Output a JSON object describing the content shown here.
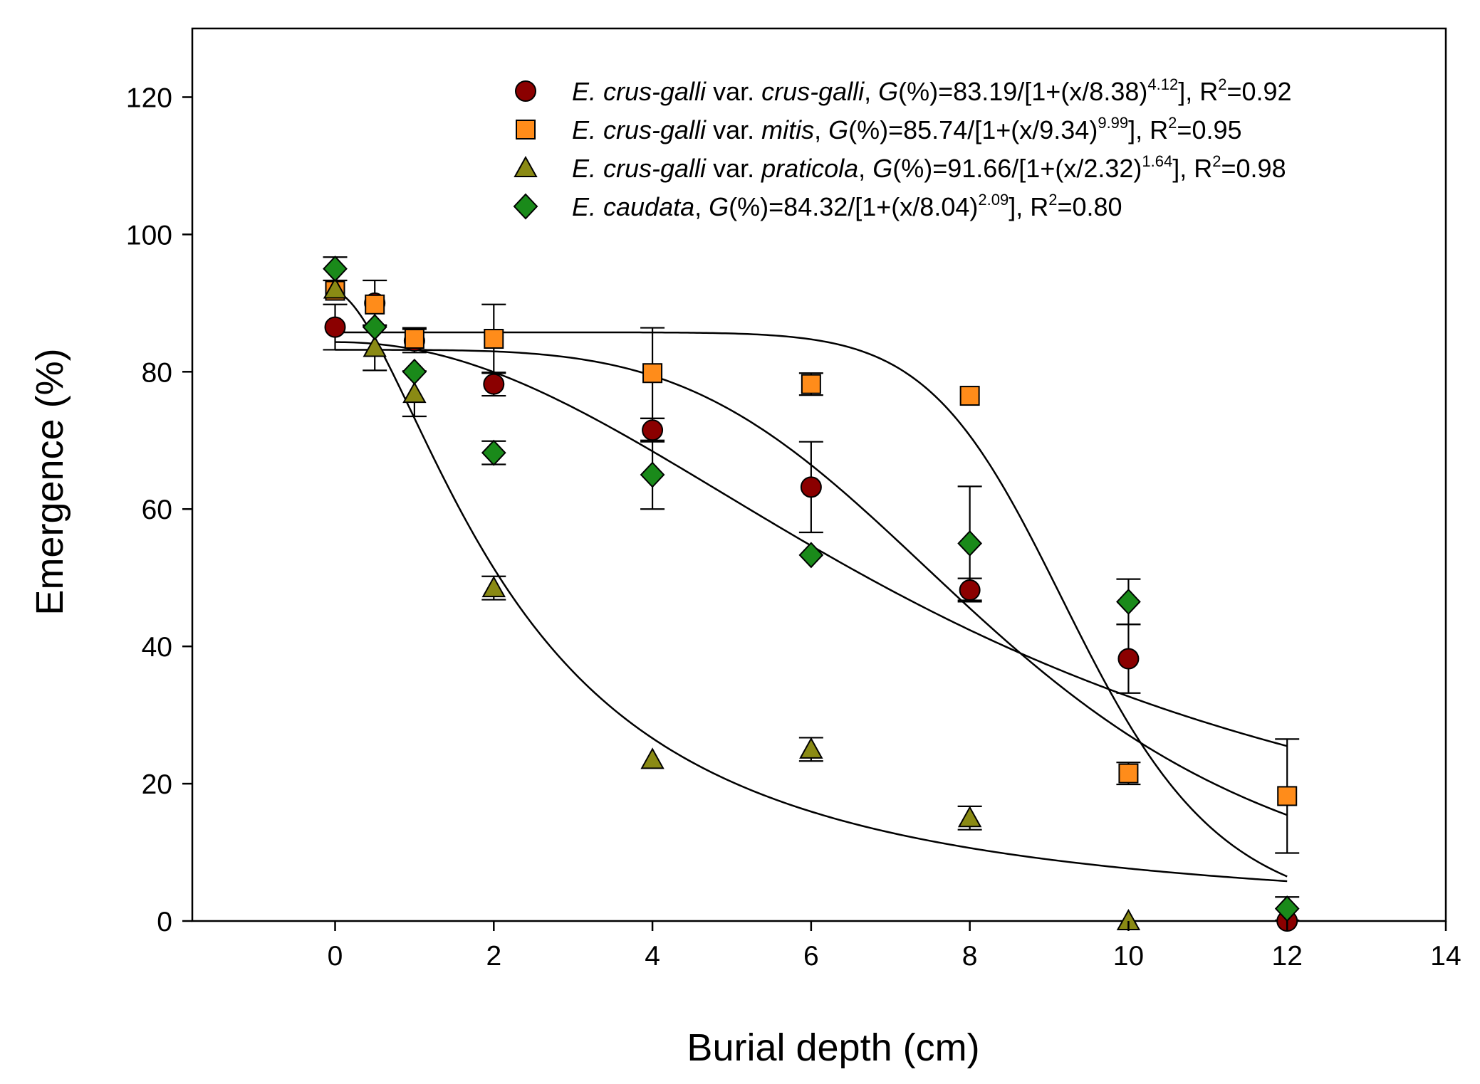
{
  "chart_data": {
    "type": "scatter",
    "xlabel": "Burial depth (cm)",
    "ylabel": "Emergence (%)",
    "xlim": [
      -1.8,
      14
    ],
    "ylim": [
      0,
      130
    ],
    "xticks": [
      "0",
      "2",
      "4",
      "6",
      "8",
      "10",
      "12",
      "14"
    ],
    "yticks": [
      "0",
      "20",
      "40",
      "60",
      "80",
      "100",
      "120"
    ],
    "grid": false,
    "legend_position": "top-right",
    "series": [
      {
        "name": "E. crus-galli var. crus-galli",
        "name_italic": "E. crus-galli",
        "name_var": " var. ",
        "name_variety": "crus-galli",
        "eq_prefix": "G",
        "eq_mid": "(%)=83.19/[1+(x/8.38)",
        "eq_exp": "4.12",
        "eq_close": "], R",
        "r2_sup": "2",
        "r2_value": "=0.92",
        "marker": "circle",
        "color": "#8b0000",
        "fit": {
          "a": 83.19,
          "x0": 8.38,
          "b": 4.12
        },
        "x": [
          0,
          0.5,
          1,
          2,
          4,
          6,
          8,
          10,
          12
        ],
        "y": [
          86.5,
          90,
          84.5,
          78.2,
          71.5,
          63.2,
          48.2,
          38.2,
          0
        ],
        "err": [
          3.3,
          3.3,
          1.7,
          1.7,
          1.7,
          6.6,
          1.7,
          5,
          0
        ]
      },
      {
        "name": "E. crus-galli var. mitis",
        "name_italic": "E. crus-galli",
        "name_var": " var. ",
        "name_variety": "mitis",
        "eq_prefix": "G",
        "eq_mid": "(%)=85.74/[1+(x/9.34)",
        "eq_exp": "9.99",
        "eq_close": "], R",
        "r2_sup": "2",
        "r2_value": "=0.95",
        "marker": "square",
        "color": "#ff8c1a",
        "fit": {
          "a": 85.74,
          "x0": 9.34,
          "b": 9.99
        },
        "x": [
          0,
          0.5,
          1,
          2,
          4,
          6,
          8,
          10,
          12
        ],
        "y": [
          91.8,
          89.8,
          84.8,
          84.8,
          79.8,
          78.2,
          76.5,
          21.5,
          18.2
        ],
        "err": [
          0,
          0,
          1.6,
          5,
          6.6,
          1.6,
          0,
          1.6,
          8.3
        ]
      },
      {
        "name": "E. crus-galli var. praticola",
        "name_italic": "E. crus-galli",
        "name_var": " var. ",
        "name_variety": "praticola",
        "eq_prefix": "G",
        "eq_mid": "(%)=91.66/[1+(x/2.32)",
        "eq_exp": "1.64",
        "eq_close": "], R",
        "r2_sup": "2",
        "r2_value": "=0.98",
        "marker": "triangle",
        "color": "#8a8a14",
        "fit": {
          "a": 91.66,
          "x0": 2.32,
          "b": 1.64
        },
        "x": [
          0,
          0.5,
          1,
          2,
          4,
          6,
          8,
          10
        ],
        "y": [
          92,
          83.5,
          76.8,
          48.5,
          23.5,
          25,
          15,
          0
        ],
        "err": [
          0,
          3.3,
          3.3,
          1.7,
          0,
          1.7,
          1.7,
          0
        ]
      },
      {
        "name": "E. caudata",
        "name_italic": "E. caudata",
        "name_var": "",
        "name_variety": "",
        "eq_prefix": "G",
        "eq_mid": "(%)=84.32/[1+(x/8.04)",
        "eq_exp": "2.09",
        "eq_close": "], R",
        "r2_sup": "2",
        "r2_value": "=0.80",
        "marker": "diamond",
        "color": "#1a8a1a",
        "fit": {
          "a": 84.32,
          "x0": 8.04,
          "b": 2.09
        },
        "x": [
          0,
          0.5,
          1,
          2,
          4,
          6,
          8,
          10,
          12
        ],
        "y": [
          95,
          86.5,
          80,
          68.2,
          65,
          53.3,
          55,
          46.5,
          1.8
        ],
        "err": [
          1.7,
          0,
          0,
          1.7,
          5,
          0,
          8.3,
          3.3,
          1.7
        ]
      }
    ]
  }
}
